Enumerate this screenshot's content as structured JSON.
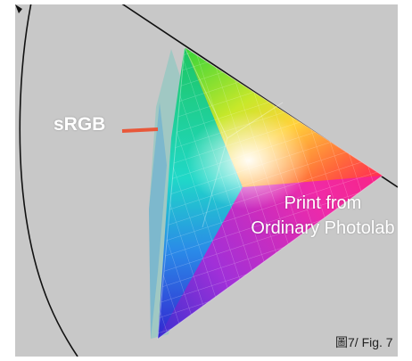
{
  "figure": {
    "labels": {
      "srgb": "sRGB",
      "print_line1": "Print from",
      "print_line2": "Ordinary Photolab"
    },
    "caption": "圖7/ Fig. 7",
    "colors": {
      "background_panel": "#c8c8c8",
      "locus_line": "#111111",
      "srgb_pointer": "#e8583a",
      "red": "#ff1d5a",
      "green": "#22c45a",
      "blue": "#3a2fd0",
      "yellow": "#ffe23a",
      "cyan": "#1fd0e0",
      "magenta": "#e01fd0"
    }
  }
}
